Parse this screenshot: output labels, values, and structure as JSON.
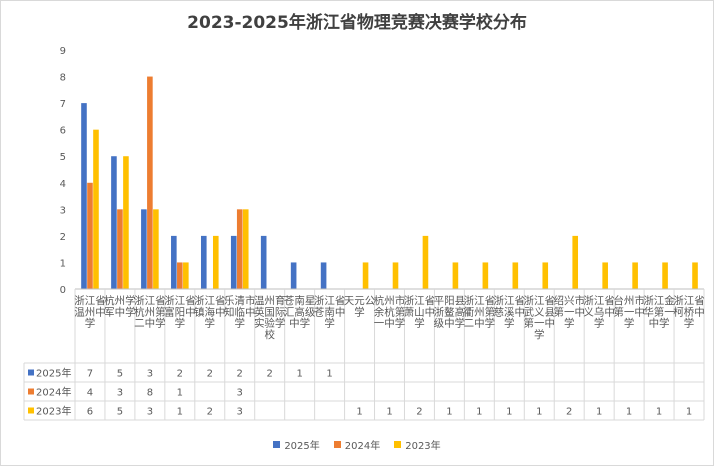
{
  "chart_data": {
    "type": "bar",
    "title": "2023-2025年浙江省物理竞赛决赛学校分布",
    "categories": [
      "浙江省温州中学",
      "杭州学军中学",
      "浙江省杭州第二中学",
      "浙江省富阳中学",
      "浙江省镇海中学",
      "乐清市知临中学",
      "温州育英国际实验学校",
      "苍南星汇高级中学",
      "浙江省苍南中学",
      "天元公学",
      "杭州市余杭第一中学",
      "浙江省萧山中学",
      "平阳县浙鳌高级中学",
      "浙江省衢州第二中学",
      "浙江省慈溪中学",
      "浙江省武义县第一中学",
      "绍兴市第一中学",
      "浙江省义乌中学",
      "台州市第一中学",
      "浙江金华第一中学",
      "浙江省柯桥中学"
    ],
    "series": [
      {
        "name": "2025年",
        "color": "#4472c4",
        "values": [
          7,
          5,
          3,
          2,
          2,
          2,
          2,
          1,
          1,
          null,
          null,
          null,
          null,
          null,
          null,
          null,
          null,
          null,
          null,
          null,
          null
        ]
      },
      {
        "name": "2024年",
        "color": "#ed7d31",
        "values": [
          4,
          3,
          8,
          1,
          null,
          3,
          null,
          null,
          null,
          null,
          null,
          null,
          null,
          null,
          null,
          null,
          null,
          null,
          null,
          null,
          null
        ]
      },
      {
        "name": "2023年",
        "color": "#ffc000",
        "values": [
          6,
          5,
          3,
          1,
          2,
          3,
          null,
          null,
          null,
          1,
          1,
          2,
          1,
          1,
          1,
          1,
          2,
          1,
          1,
          1,
          1
        ]
      }
    ],
    "ylim": [
      0,
      9
    ],
    "yticks": [
      0,
      1,
      2,
      3,
      4,
      5,
      6,
      7,
      8,
      9
    ],
    "grid": false,
    "legend": "bottom",
    "data_table": true
  }
}
